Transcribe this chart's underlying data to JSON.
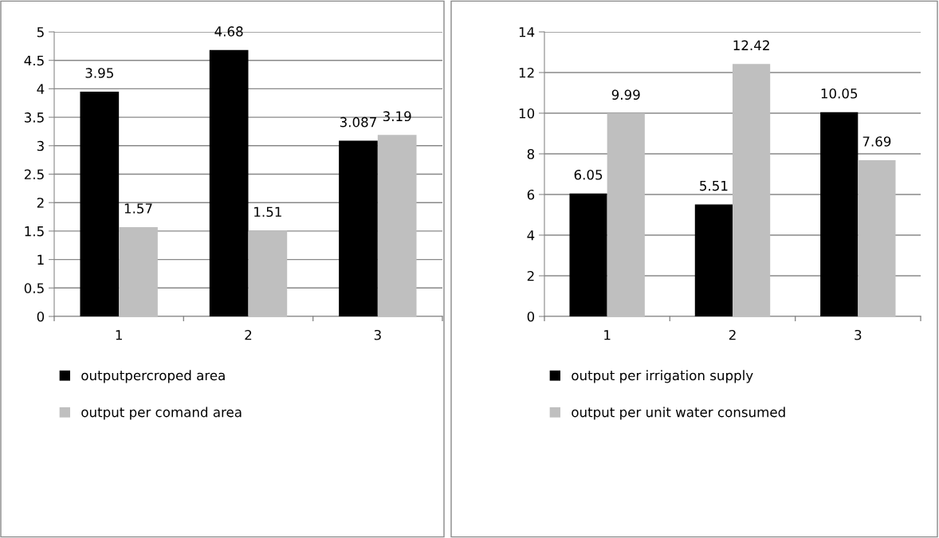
{
  "chart_data": [
    {
      "type": "bar",
      "categories": [
        "1",
        "2",
        "3"
      ],
      "series": [
        {
          "name": "outputpercroped area",
          "color": "#000000",
          "values": [
            3.95,
            4.68,
            3.087
          ]
        },
        {
          "name": "output per comand area",
          "color": "#bfbfbf",
          "values": [
            1.57,
            1.51,
            3.19
          ]
        }
      ],
      "ylim": [
        0,
        5
      ],
      "yticks": [
        0,
        0.5,
        1,
        1.5,
        2,
        2.5,
        3,
        3.5,
        4,
        4.5,
        5
      ],
      "grid": "y",
      "legend": "bottom",
      "data_labels": true
    },
    {
      "type": "bar",
      "categories": [
        "1",
        "2",
        "3"
      ],
      "series": [
        {
          "name": "output per irrigation supply",
          "color": "#000000",
          "values": [
            6.05,
            5.51,
            10.05
          ]
        },
        {
          "name": "output per unit water consumed",
          "color": "#bfbfbf",
          "values": [
            9.99,
            12.42,
            7.69
          ]
        }
      ],
      "ylim": [
        0,
        14
      ],
      "yticks": [
        0,
        2,
        4,
        6,
        8,
        10,
        12,
        14
      ],
      "grid": "y",
      "legend": "bottom",
      "data_labels": true
    }
  ]
}
